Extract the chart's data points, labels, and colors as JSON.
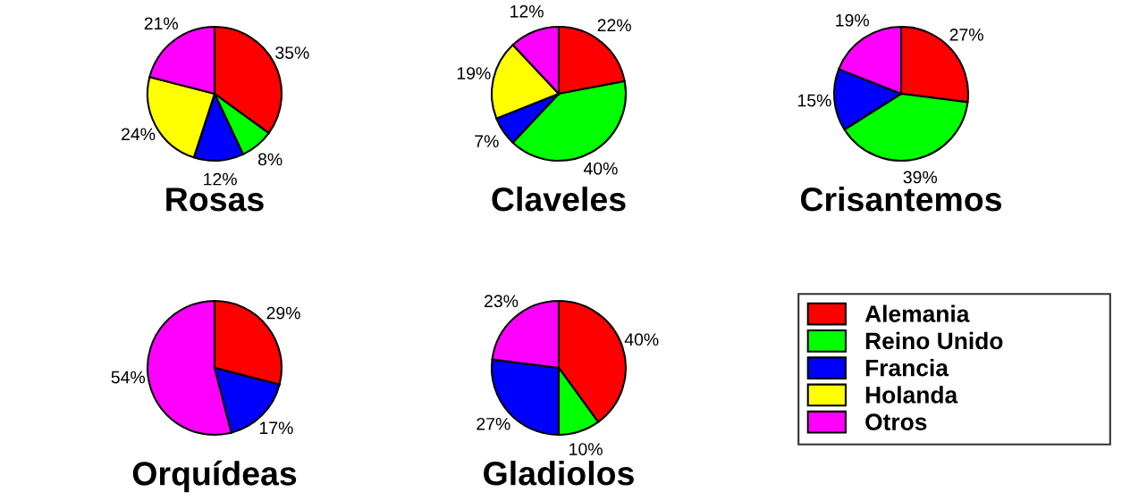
{
  "chart_data": [
    {
      "type": "pie",
      "title": "Rosas",
      "categories": [
        "Alemania",
        "Reino Unido",
        "Francia",
        "Holanda",
        "Otros"
      ],
      "values": [
        35,
        8,
        12,
        24,
        21
      ],
      "colors": [
        "#ff0000",
        "#00ff00",
        "#0000ff",
        "#ffff00",
        "#ff00ff"
      ],
      "value_labels": [
        "35%",
        "8%",
        "12%",
        "24%",
        "21%"
      ],
      "legend": "right"
    },
    {
      "type": "pie",
      "title": "Claveles",
      "categories": [
        null,
        null,
        null,
        null,
        null
      ],
      "values": [
        22,
        40,
        7,
        19,
        12
      ],
      "colors": [
        "#ff0000",
        "#00ff00",
        "#0000ff",
        "#ffff00",
        "#ff00ff"
      ],
      "value_labels": [
        "22%",
        "40%",
        "7%",
        "19%",
        "12%"
      ]
    },
    {
      "type": "pie",
      "title": "Crisantemos",
      "categories": [
        null,
        null,
        null,
        null
      ],
      "values": [
        27,
        39,
        15,
        19
      ],
      "colors": [
        "#ff0000",
        "#00ff00",
        "#0000ff",
        "#ff00ff"
      ],
      "value_labels": [
        "27%",
        "39%",
        "15%",
        "19%"
      ]
    },
    {
      "type": "pie",
      "title": "Orquídeas",
      "categories": [
        null,
        null,
        null
      ],
      "values": [
        29,
        17,
        54
      ],
      "colors": [
        "#ff0000",
        "#0000ff",
        "#ff00ff"
      ],
      "value_labels": [
        "29%",
        "17%",
        "54%"
      ]
    },
    {
      "type": "pie",
      "title": "Gladiolos",
      "categories": [
        null,
        null,
        null,
        null
      ],
      "values": [
        40,
        10,
        27,
        23
      ],
      "colors": [
        "#ff0000",
        "#00ff00",
        "#0000ff",
        "#ff00ff"
      ],
      "value_labels": [
        "40%",
        "10%",
        "27%",
        "23%"
      ]
    }
  ]
}
